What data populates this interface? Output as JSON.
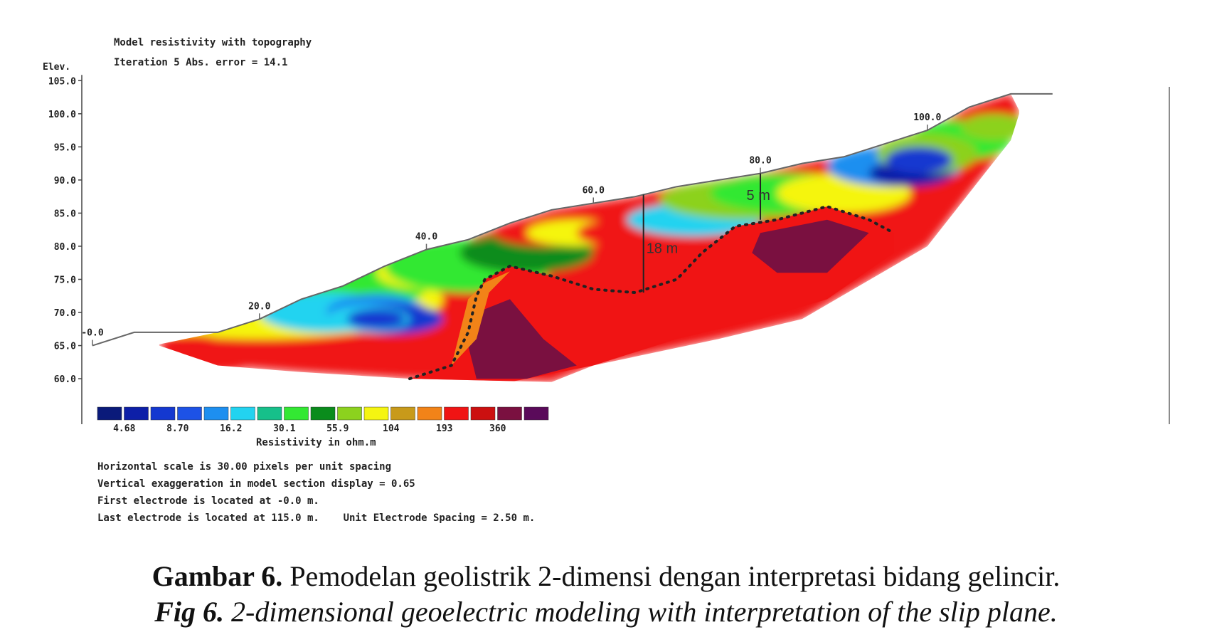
{
  "chart_data": {
    "type": "heatmap",
    "title": "Model resistivity with topography",
    "subtitle": "Iteration 5 Abs. error = 14.1",
    "ylabel": "Elev.",
    "y_ticks": [
      "105.0",
      "100.0",
      "95.0",
      "90.0",
      "85.0",
      "80.0",
      "75.0",
      "70.0",
      "65.0",
      "60.0"
    ],
    "ylim": [
      57,
      106
    ],
    "xlim": [
      0,
      122
    ],
    "x_tick_labels": [
      {
        "x": 0,
        "label": "-0.0"
      },
      {
        "x": 20,
        "label": "20.0"
      },
      {
        "x": 40,
        "label": "40.0"
      },
      {
        "x": 60,
        "label": "60.0"
      },
      {
        "x": 80,
        "label": "80.0"
      },
      {
        "x": 100,
        "label": "100.0"
      }
    ],
    "topography": [
      [
        0,
        65.0
      ],
      [
        5,
        67.0
      ],
      [
        15,
        67.0
      ],
      [
        20,
        69.0
      ],
      [
        25,
        72.0
      ],
      [
        30,
        74.0
      ],
      [
        35,
        77.0
      ],
      [
        40,
        79.5
      ],
      [
        45,
        81.0
      ],
      [
        50,
        83.5
      ],
      [
        55,
        85.5
      ],
      [
        60,
        86.5
      ],
      [
        65,
        87.5
      ],
      [
        70,
        89.0
      ],
      [
        75,
        90.0
      ],
      [
        80,
        91.0
      ],
      [
        85,
        92.5
      ],
      [
        90,
        93.5
      ],
      [
        95,
        95.5
      ],
      [
        100,
        97.5
      ],
      [
        105,
        101.0
      ],
      [
        110,
        103.0
      ],
      [
        115,
        103.0
      ]
    ],
    "section_bottom": [
      [
        8,
        65.0
      ],
      [
        15,
        62.0
      ],
      [
        25,
        61.0
      ],
      [
        38,
        60.0
      ],
      [
        55,
        59.5
      ],
      [
        60,
        62.0
      ],
      [
        75,
        66.0
      ],
      [
        85,
        69.0
      ],
      [
        100,
        80.0
      ],
      [
        110,
        96.0
      ],
      [
        111,
        100.0
      ]
    ],
    "slip_plane": [
      [
        38,
        60.0
      ],
      [
        43,
        62.0
      ],
      [
        45,
        67.0
      ],
      [
        46,
        72.5
      ],
      [
        47,
        75.0
      ],
      [
        50,
        77.0
      ],
      [
        55,
        75.5
      ],
      [
        60,
        73.5
      ],
      [
        65,
        73.0
      ],
      [
        70,
        75.0
      ],
      [
        73,
        79.0
      ],
      [
        77,
        83.0
      ],
      [
        82,
        84.0
      ],
      [
        88,
        86.0
      ],
      [
        93,
        84.0
      ],
      [
        96,
        82.0
      ]
    ],
    "annotations": [
      {
        "text": "18 m",
        "x": 66,
        "y": 79
      },
      {
        "text": "5 m",
        "x": 78,
        "y": 87
      }
    ],
    "color_scale": {
      "label": "Resistivity in ohm.m",
      "colors": [
        "#0a1a7a",
        "#0d1fa8",
        "#1438d0",
        "#1d52e6",
        "#1d8ff0",
        "#22d3f0",
        "#16c08a",
        "#33e833",
        "#0a8c1c",
        "#8cd21e",
        "#f5f511",
        "#c89a1a",
        "#f28318",
        "#f01414",
        "#cc1010",
        "#7a1040",
        "#5a0a5a"
      ],
      "tick_labels": [
        "4.68",
        "8.70",
        "16.2",
        "30.1",
        "55.9",
        "104",
        "193",
        "360"
      ]
    },
    "notes": [
      "Horizontal scale is 30.00 pixels per unit spacing",
      "Vertical exaggeration in model section display = 0.65",
      "First electrode is located at -0.0  m.",
      "Last electrode is located at 115.0 m.    Unit Electrode Spacing = 2.50 m."
    ]
  },
  "caption": {
    "id_label": "Gambar 6.",
    "id_text": " Pemodelan geolistrik 2-dimensi dengan interpretasi bidang gelincir.",
    "en_label": "Fig 6.",
    "en_text": " 2-dimensional geoelectric modeling with interpretation of the slip plane."
  }
}
